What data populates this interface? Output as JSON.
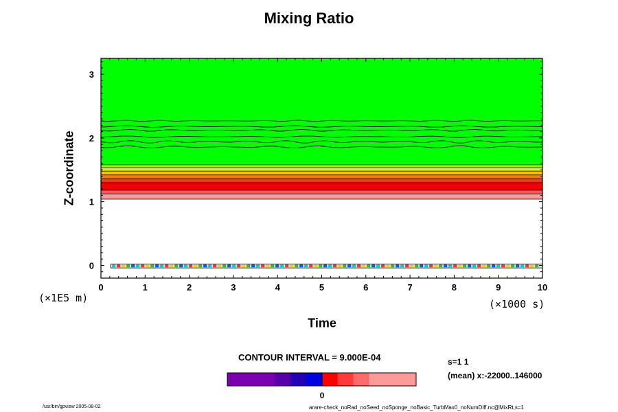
{
  "chart_data": {
    "type": "heatmap",
    "title": "Mixing Ratio",
    "xlabel": "Time",
    "ylabel": "Z-coordinate",
    "x_unit_label": "(×1000 s)",
    "y_unit_label": "(×1E5 m)",
    "xlim": [
      0,
      10
    ],
    "ylim": [
      -0.2,
      3.25
    ],
    "x_ticks": [
      "0",
      "1",
      "2",
      "3",
      "4",
      "5",
      "6",
      "7",
      "8",
      "9",
      "10"
    ],
    "y_ticks": [
      "0",
      "1",
      "2",
      "3"
    ],
    "bands": [
      {
        "z_from": 1.04,
        "z_to": 1.12,
        "color": "#ff9a9a"
      },
      {
        "z_from": 1.12,
        "z_to": 1.18,
        "color": "#ff5a5a"
      },
      {
        "z_from": 1.18,
        "z_to": 1.3,
        "color": "#f00000"
      },
      {
        "z_from": 1.3,
        "z_to": 1.36,
        "color": "#ff3800"
      },
      {
        "z_from": 1.36,
        "z_to": 1.42,
        "color": "#ff7a00"
      },
      {
        "z_from": 1.42,
        "z_to": 1.48,
        "color": "#ffc000"
      },
      {
        "z_from": 1.48,
        "z_to": 1.53,
        "color": "#e8f000"
      },
      {
        "z_from": 1.53,
        "z_to": 1.58,
        "color": "#a0f000"
      },
      {
        "z_from": 1.58,
        "z_to": 3.25,
        "color": "#00ff00"
      }
    ],
    "contour_interval": "CONTOUR INTERVAL = 9.000E-04",
    "colorbar": {
      "colors": [
        "#7a00b0",
        "#7a00b0",
        "#7a00b0",
        "#5a00a8",
        "#2400b4",
        "#0000e0",
        "#ff0000",
        "#ff3a3a",
        "#ff6a6a",
        "#ff9a9a",
        "#ff9a9a",
        "#ff9a9a"
      ],
      "tick_label": "0"
    }
  },
  "info": {
    "line1": "s=1 1",
    "line2": "(mean) x:-22000..146000"
  },
  "footer": {
    "left": "/usr/bin/gpview 2005-08-02",
    "right": "arare-check_noRad_noSeed_noSponge_noBasic_TurbMax0_noNumDiff.nc@MixRt,s=1"
  }
}
